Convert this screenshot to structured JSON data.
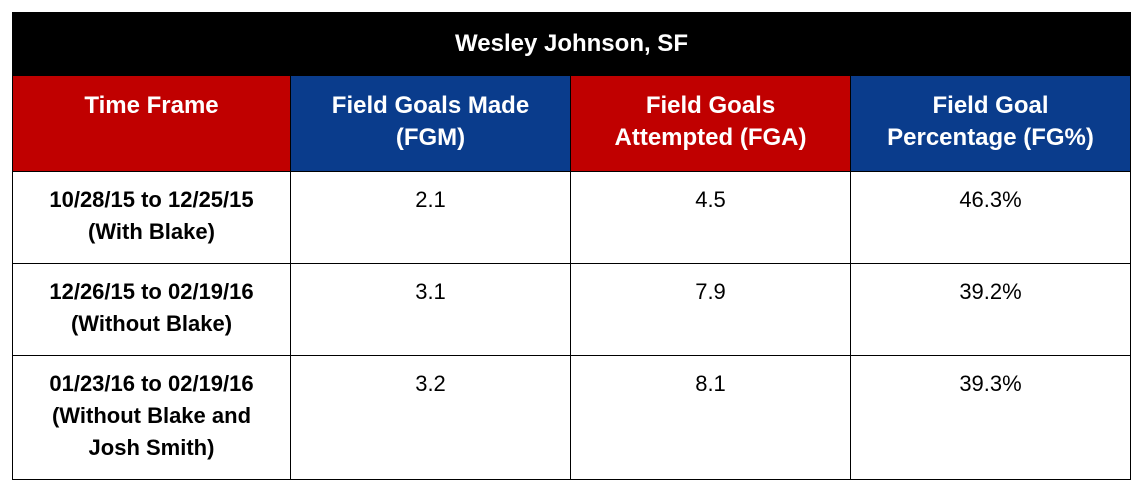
{
  "table": {
    "title": "Wesley Johnson, SF",
    "headers": [
      {
        "line1": "Time Frame",
        "line2": "",
        "bg": "#c00000"
      },
      {
        "line1": "Field Goals Made",
        "line2": "(FGM)",
        "bg": "#0a3c8c"
      },
      {
        "line1": "Field Goals",
        "line2": "Attempted (FGA)",
        "bg": "#c00000"
      },
      {
        "line1": "Field Goal",
        "line2": "Percentage (FG%)",
        "bg": "#0a3c8c"
      }
    ],
    "rows": [
      {
        "frame": [
          "10/28/15 to 12/25/15",
          "(With Blake)"
        ],
        "fgm": "2.1",
        "fga": "4.5",
        "fgp": "46.3%"
      },
      {
        "frame": [
          "12/26/15 to 02/19/16",
          "(Without Blake)"
        ],
        "fgm": "3.1",
        "fga": "7.9",
        "fgp": "39.2%"
      },
      {
        "frame": [
          "01/23/16 to 02/19/16",
          "(Without Blake and",
          "Josh Smith)"
        ],
        "fgm": "3.2",
        "fga": "8.1",
        "fgp": "39.3%"
      }
    ]
  }
}
